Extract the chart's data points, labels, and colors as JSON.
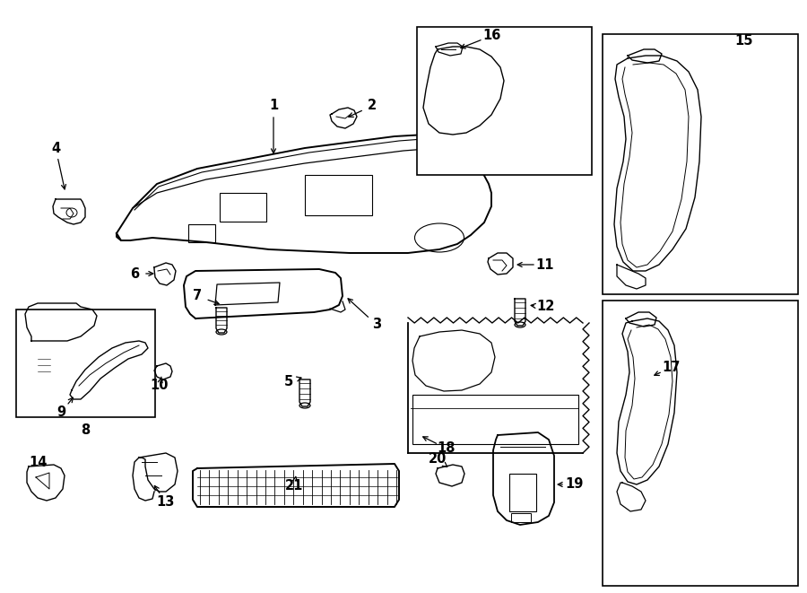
{
  "bg_color": "#ffffff",
  "line_color": "#000000",
  "fig_width": 9.0,
  "fig_height": 6.61
}
